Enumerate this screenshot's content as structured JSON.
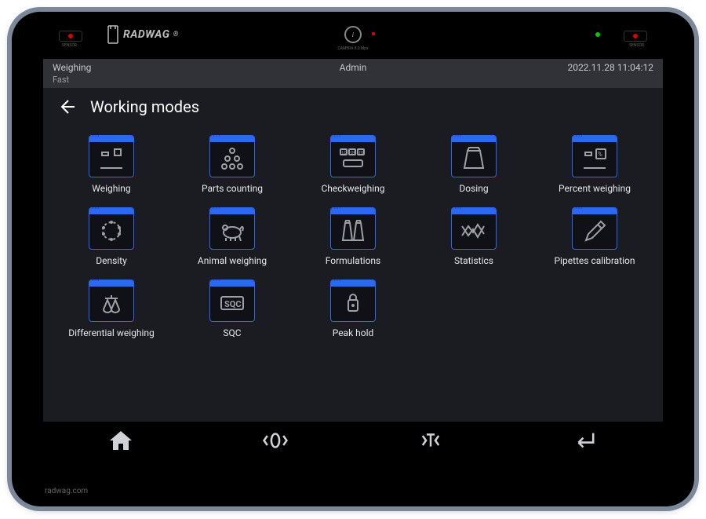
{
  "brand": "RADWAG",
  "brand_url": "radwag.com",
  "camera_label": "CAMERA 8.0 Mpx",
  "sensor_label": "SENSOR",
  "status": {
    "mode": "Weighing",
    "speed": "Fast",
    "user": "Admin",
    "datetime": "2022.11.28 11:04:12"
  },
  "page_title": "Working modes",
  "modes": [
    {
      "id": "weighing",
      "label": "Weighing"
    },
    {
      "id": "parts-counting",
      "label": "Parts counting"
    },
    {
      "id": "checkweighing",
      "label": "Checkweighing"
    },
    {
      "id": "dosing",
      "label": "Dosing"
    },
    {
      "id": "percent-weighing",
      "label": "Percent weighing"
    },
    {
      "id": "density",
      "label": "Density"
    },
    {
      "id": "animal-weighing",
      "label": "Animal weighing"
    },
    {
      "id": "formulations",
      "label": "Formulations"
    },
    {
      "id": "statistics",
      "label": "Statistics"
    },
    {
      "id": "pipettes-calibration",
      "label": "Pipettes calibration"
    },
    {
      "id": "differential-weighing",
      "label": "Differential weighing"
    },
    {
      "id": "sqc",
      "label": "SQC"
    },
    {
      "id": "peak-hold",
      "label": "Peak hold"
    }
  ],
  "colors": {
    "accent": "#2d68f0",
    "screen_bg": "#1a1c21",
    "icon_stroke": "#9da0a6",
    "text": "#e6e7ea"
  }
}
